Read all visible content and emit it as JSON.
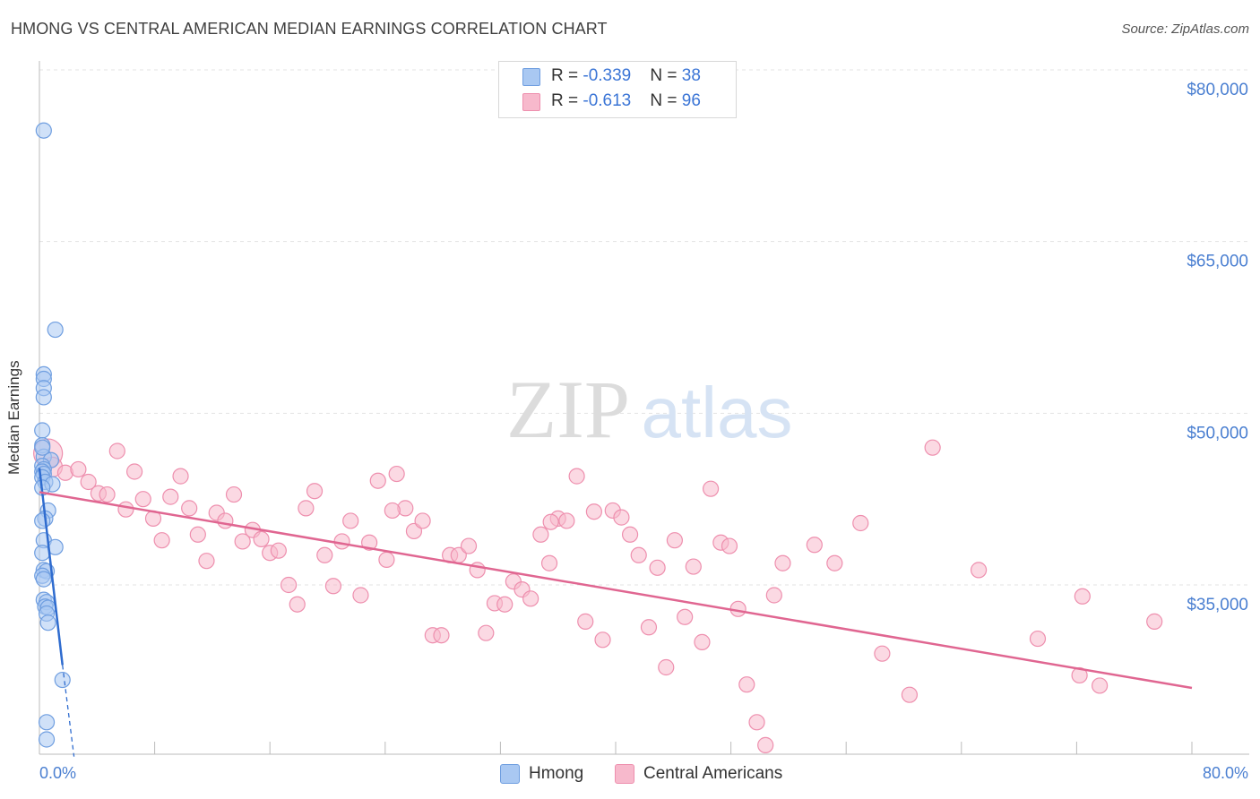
{
  "title": "HMONG VS CENTRAL AMERICAN MEDIAN EARNINGS CORRELATION CHART",
  "source": "Source: ZipAtlas.com",
  "watermark": {
    "zip": "ZIP",
    "atlas": "atlas"
  },
  "legend": {
    "rows": [
      {
        "r_label": "R = ",
        "r_value": "-0.339",
        "n_label": "N = ",
        "n_value": "38",
        "color": "#a9c8f2",
        "border": "#6f9ee0"
      },
      {
        "r_label": "R = ",
        "r_value": "-0.613",
        "n_label": "N = ",
        "n_value": "96",
        "color": "#f7b9cc",
        "border": "#ee8fae"
      }
    ]
  },
  "bottom_legend": [
    {
      "label": "Hmong",
      "color": "#a9c8f2",
      "border": "#6f9ee0"
    },
    {
      "label": "Central Americans",
      "color": "#f7b9cc",
      "border": "#ee8fae"
    }
  ],
  "chart_data": {
    "type": "scatter",
    "title": "HMONG VS CENTRAL AMERICAN MEDIAN EARNINGS CORRELATION CHART",
    "xlabel": "",
    "ylabel": "Median Earnings",
    "xlim": [
      0,
      80
    ],
    "ylim": [
      20000,
      82000
    ],
    "x_tick_labels": [
      "0.0%",
      "80.0%"
    ],
    "y_ticks": [
      35000,
      50000,
      65000,
      80000
    ],
    "y_tick_labels": [
      "$35,000",
      "$50,000",
      "$65,000",
      "$80,000"
    ],
    "grid": true,
    "legend_position": "top-center",
    "series": [
      {
        "name": "Hmong",
        "color": "#6f9ee0",
        "fill": "#a9c8f2",
        "trend": {
          "x0": 0.0,
          "y0": 45200,
          "x1": 1.6,
          "y1": 28000,
          "dash_to_x": 2.4,
          "dash_to_y": 20000,
          "color": "#2f6ccf"
        },
        "points": [
          [
            0.3,
            74700
          ],
          [
            1.1,
            57300
          ],
          [
            0.3,
            53400
          ],
          [
            0.3,
            53000
          ],
          [
            0.3,
            52200
          ],
          [
            0.3,
            51400
          ],
          [
            0.2,
            48500
          ],
          [
            0.2,
            47200
          ],
          [
            0.3,
            46200
          ],
          [
            0.8,
            45900
          ],
          [
            0.2,
            45400
          ],
          [
            0.3,
            45100
          ],
          [
            0.2,
            44900
          ],
          [
            0.3,
            44700
          ],
          [
            0.2,
            44400
          ],
          [
            0.4,
            44000
          ],
          [
            0.9,
            43800
          ],
          [
            0.2,
            43500
          ],
          [
            0.6,
            41500
          ],
          [
            0.4,
            40800
          ],
          [
            0.2,
            40600
          ],
          [
            0.3,
            38900
          ],
          [
            1.1,
            38300
          ],
          [
            0.2,
            37800
          ],
          [
            0.3,
            36300
          ],
          [
            0.5,
            36200
          ],
          [
            0.2,
            35800
          ],
          [
            0.3,
            35500
          ],
          [
            0.3,
            33700
          ],
          [
            0.5,
            33500
          ],
          [
            0.4,
            33100
          ],
          [
            0.6,
            33000
          ],
          [
            0.5,
            32500
          ],
          [
            0.6,
            31700
          ],
          [
            1.6,
            26700
          ],
          [
            0.5,
            23000
          ],
          [
            0.5,
            21500
          ],
          [
            0.2,
            47000
          ]
        ]
      },
      {
        "name": "Central Americans",
        "color": "#ee8fae",
        "fill": "#f7b9cc",
        "trend": {
          "x0": 0.0,
          "y0": 43100,
          "x1": 80.0,
          "y1": 26000,
          "color": "#e06691"
        },
        "points": [
          [
            0.6,
            46500
          ],
          [
            0.9,
            45300
          ],
          [
            1.8,
            44800
          ],
          [
            2.7,
            45100
          ],
          [
            3.4,
            44000
          ],
          [
            4.1,
            43000
          ],
          [
            4.7,
            42900
          ],
          [
            5.4,
            46700
          ],
          [
            6.0,
            41600
          ],
          [
            6.6,
            44900
          ],
          [
            7.2,
            42500
          ],
          [
            7.9,
            40800
          ],
          [
            8.5,
            38900
          ],
          [
            9.1,
            42700
          ],
          [
            9.8,
            44500
          ],
          [
            10.4,
            41700
          ],
          [
            11.0,
            39400
          ],
          [
            11.6,
            37100
          ],
          [
            12.3,
            41300
          ],
          [
            12.9,
            40600
          ],
          [
            13.5,
            42900
          ],
          [
            14.1,
            38800
          ],
          [
            14.8,
            39800
          ],
          [
            15.4,
            39000
          ],
          [
            16.0,
            37800
          ],
          [
            16.6,
            38000
          ],
          [
            17.3,
            35000
          ],
          [
            17.9,
            33300
          ],
          [
            18.5,
            41700
          ],
          [
            19.1,
            43200
          ],
          [
            19.8,
            37600
          ],
          [
            20.4,
            34900
          ],
          [
            21.0,
            38800
          ],
          [
            21.6,
            40600
          ],
          [
            22.3,
            34100
          ],
          [
            22.9,
            38700
          ],
          [
            23.5,
            44100
          ],
          [
            24.1,
            37200
          ],
          [
            24.8,
            44700
          ],
          [
            25.4,
            41700
          ],
          [
            26.0,
            39700
          ],
          [
            26.6,
            40600
          ],
          [
            27.3,
            30600
          ],
          [
            27.9,
            30600
          ],
          [
            28.5,
            37600
          ],
          [
            29.1,
            37600
          ],
          [
            29.8,
            38400
          ],
          [
            30.4,
            36300
          ],
          [
            31.0,
            30800
          ],
          [
            31.6,
            33400
          ],
          [
            32.3,
            33300
          ],
          [
            32.9,
            35300
          ],
          [
            33.5,
            34600
          ],
          [
            34.1,
            33800
          ],
          [
            34.8,
            39400
          ],
          [
            35.4,
            36900
          ],
          [
            36.0,
            40800
          ],
          [
            36.6,
            40600
          ],
          [
            37.3,
            44500
          ],
          [
            37.9,
            31800
          ],
          [
            38.5,
            41400
          ],
          [
            39.1,
            30200
          ],
          [
            39.8,
            41500
          ],
          [
            40.4,
            40900
          ],
          [
            41.0,
            39400
          ],
          [
            41.6,
            37600
          ],
          [
            42.3,
            31300
          ],
          [
            42.9,
            36500
          ],
          [
            43.5,
            27800
          ],
          [
            44.1,
            38900
          ],
          [
            44.8,
            32200
          ],
          [
            45.4,
            36600
          ],
          [
            46.0,
            30000
          ],
          [
            46.6,
            43400
          ],
          [
            47.3,
            38700
          ],
          [
            47.9,
            38400
          ],
          [
            48.5,
            32900
          ],
          [
            49.1,
            26300
          ],
          [
            49.8,
            23000
          ],
          [
            50.4,
            21000
          ],
          [
            51.0,
            34100
          ],
          [
            51.6,
            36900
          ],
          [
            53.8,
            38500
          ],
          [
            55.2,
            36900
          ],
          [
            57.0,
            40400
          ],
          [
            58.5,
            29000
          ],
          [
            60.4,
            25400
          ],
          [
            62.0,
            47000
          ],
          [
            65.2,
            36300
          ],
          [
            69.3,
            30300
          ],
          [
            72.4,
            34000
          ],
          [
            72.2,
            27100
          ],
          [
            73.6,
            26200
          ],
          [
            77.4,
            31800
          ],
          [
            35.5,
            40500
          ],
          [
            24.5,
            41500
          ]
        ]
      }
    ]
  }
}
